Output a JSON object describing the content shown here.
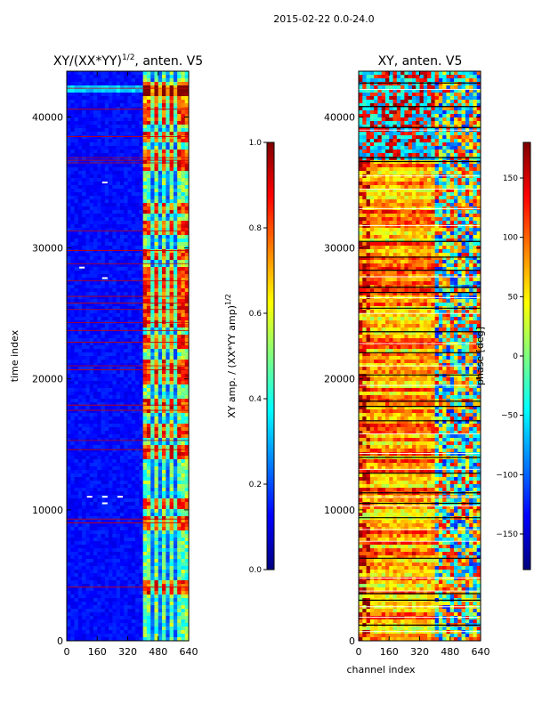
{
  "figure": {
    "suptitle": "2015-02-22 0.0-24.0"
  },
  "colors": {
    "jet": [
      "#00007f",
      "#0000ff",
      "#007fff",
      "#00ffff",
      "#7fff7f",
      "#ffff00",
      "#ff7f00",
      "#ff0000",
      "#7f0000"
    ],
    "flag_line": "#cc0000",
    "gap_line": "#000000",
    "white_line": "#ffffff"
  },
  "chart_data": [
    {
      "type": "heatmap",
      "id": "amp",
      "title": "XY/(XX*YY)",
      "title_superscript": "1/2",
      "title_suffix": ", anten. V5",
      "xlabel": "",
      "ylabel": "time index",
      "xlim": [
        0,
        640
      ],
      "ylim": [
        0,
        43500
      ],
      "xticks": [
        "0",
        "160",
        "320",
        "480",
        "640"
      ],
      "xtick_values": [
        0,
        160,
        320,
        480,
        640
      ],
      "yticks": [
        "0",
        "10000",
        "20000",
        "30000",
        "40000"
      ],
      "ytick_values": [
        0,
        10000,
        20000,
        30000,
        40000
      ],
      "channel_bands": [
        [
          410,
          440
        ],
        [
          460,
          475
        ],
        [
          500,
          520
        ],
        [
          540,
          560
        ],
        [
          580,
          600
        ],
        [
          610,
          630
        ]
      ],
      "hot_rows": [
        42000,
        40500,
        39800,
        38500,
        37000,
        36500,
        33000,
        31500,
        29500,
        28000,
        27000,
        26300,
        25400,
        24500,
        22800,
        21000,
        20000,
        18000,
        16000,
        14500,
        10500,
        9000,
        4000
      ],
      "flag_lines": [
        42200,
        40600,
        38500,
        36900,
        36700,
        36500,
        31300,
        29800,
        28800,
        27500,
        26300,
        25800,
        25300,
        24300,
        23700,
        22800,
        21000,
        20700,
        18000,
        17600,
        15300,
        14600,
        9300,
        9000,
        4100
      ],
      "spots": [
        [
          200,
          35000
        ],
        [
          200,
          27700
        ],
        [
          80,
          28500
        ],
        [
          200,
          11000
        ],
        [
          120,
          11000
        ],
        [
          280,
          11000
        ],
        [
          200,
          10500
        ]
      ],
      "colorbar": {
        "label": "XY amp. / (XX*YY amp)",
        "label_superscript": "1/2",
        "range": [
          0.0,
          1.0
        ],
        "ticks": [
          "0.0",
          "0.2",
          "0.4",
          "0.6",
          "0.8",
          "1.0"
        ],
        "tick_values": [
          0.0,
          0.2,
          0.4,
          0.6,
          0.8,
          1.0
        ]
      }
    },
    {
      "type": "heatmap",
      "id": "phase",
      "title": "XY, anten. V5",
      "xlabel": "channel index",
      "ylabel": "",
      "xlim": [
        0,
        640
      ],
      "ylim": [
        0,
        43500
      ],
      "xticks": [
        "0",
        "160",
        "320",
        "480",
        "640"
      ],
      "xtick_values": [
        0,
        160,
        320,
        480,
        640
      ],
      "yticks": [
        "0",
        "10000",
        "20000",
        "30000",
        "40000"
      ],
      "ytick_values": [
        0,
        10000,
        20000,
        30000,
        40000
      ],
      "gap_lines": [
        42600,
        40800,
        39200,
        36900,
        36600,
        30500,
        29300,
        28300,
        27000,
        26600,
        25400,
        23600,
        22000,
        20300,
        18300,
        17900,
        16800,
        14000,
        12800,
        11300,
        10500,
        9400,
        6300,
        3600,
        3100,
        1200
      ],
      "white_lines": [
        42100,
        39000,
        35500,
        34500,
        33000,
        31700,
        27800,
        26200,
        25000,
        22700,
        21000,
        19500,
        15800,
        14300,
        13100,
        11000,
        10300,
        8500,
        7600,
        4800,
        3800,
        2600,
        1800,
        700
      ],
      "colorbar": {
        "label": "phase [deg]",
        "range": [
          -180,
          180
        ],
        "ticks": [
          "−150",
          "−100",
          "−50",
          "0",
          "50",
          "100",
          "150"
        ],
        "tick_values": [
          -150,
          -100,
          -50,
          0,
          50,
          100,
          150
        ]
      }
    }
  ]
}
